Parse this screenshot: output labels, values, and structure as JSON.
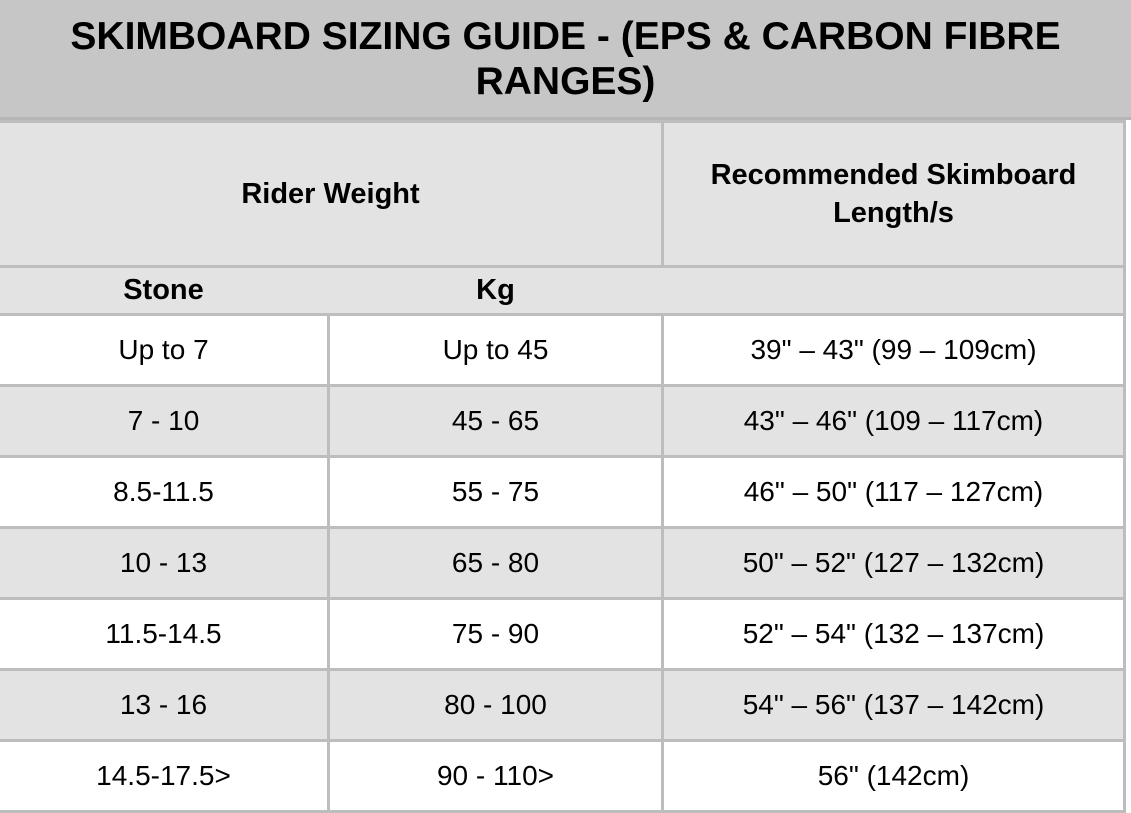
{
  "title": "SKIMBOARD SIZING GUIDE - (EPS & CARBON FIBRE RANGES)",
  "headers": {
    "rider_weight": "Rider Weight",
    "recommended_length": "Recommended Skimboard Length/s",
    "stone": "Stone",
    "kg": "Kg"
  },
  "rows": [
    {
      "stone": "Up to 7",
      "kg": "Up to 45",
      "length": "39\" – 43\" (99 – 109cm)"
    },
    {
      "stone": "7 - 10",
      "kg": "45 - 65",
      "length": "43\" – 46\" (109 – 117cm)"
    },
    {
      "stone": "8.5-11.5",
      "kg": "55 - 75",
      "length": "46\" – 50\" (117 – 127cm)"
    },
    {
      "stone": "10 - 13",
      "kg": "65 - 80",
      "length": "50\" – 52\" (127 – 132cm)"
    },
    {
      "stone": "11.5-14.5",
      "kg": "75 - 90",
      "length": "52\" – 54\" (132 – 137cm)"
    },
    {
      "stone": "13 - 16",
      "kg": "80 - 100",
      "length": "54\" – 56\" (137 – 142cm)"
    },
    {
      "stone": "14.5-17.5>",
      "kg": "90 - 110>",
      "length": "56\" (142cm)"
    }
  ]
}
